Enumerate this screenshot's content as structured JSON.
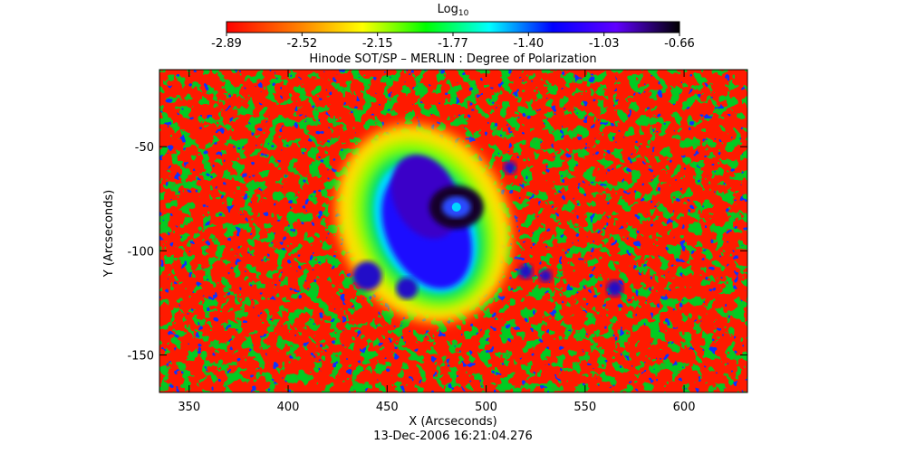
{
  "chart_data": {
    "type": "heatmap",
    "title": "Hinode SOT/SP – MERLIN : Degree of Polarization",
    "xlabel": "X (Arcseconds)",
    "ylabel": "Y (Arcseconds)",
    "date_label": "13-Dec-2006 16:21:04.276",
    "xlim": [
      335,
      632
    ],
    "ylim": [
      -168,
      -13
    ],
    "x_ticks": [
      350,
      400,
      450,
      500,
      550,
      600
    ],
    "y_ticks": [
      -50,
      -100,
      -150
    ],
    "colorbar": {
      "label_main": "Log",
      "label_sub": "10",
      "min": -2.89,
      "max": -0.66,
      "ticks": [
        "-2.89",
        "-2.52",
        "-2.15",
        "-1.77",
        "-1.40",
        "-1.03",
        "-0.66"
      ],
      "colors": [
        "#ff0000",
        "#ff8000",
        "#ffff00",
        "#00ff00",
        "#00ffff",
        "#0000ff",
        "#6000ff",
        "#000000"
      ]
    },
    "features": {
      "sunspot_umbra_center": [
        485,
        -79
      ],
      "sunspot_penumbra_center": [
        470,
        -90
      ]
    }
  }
}
